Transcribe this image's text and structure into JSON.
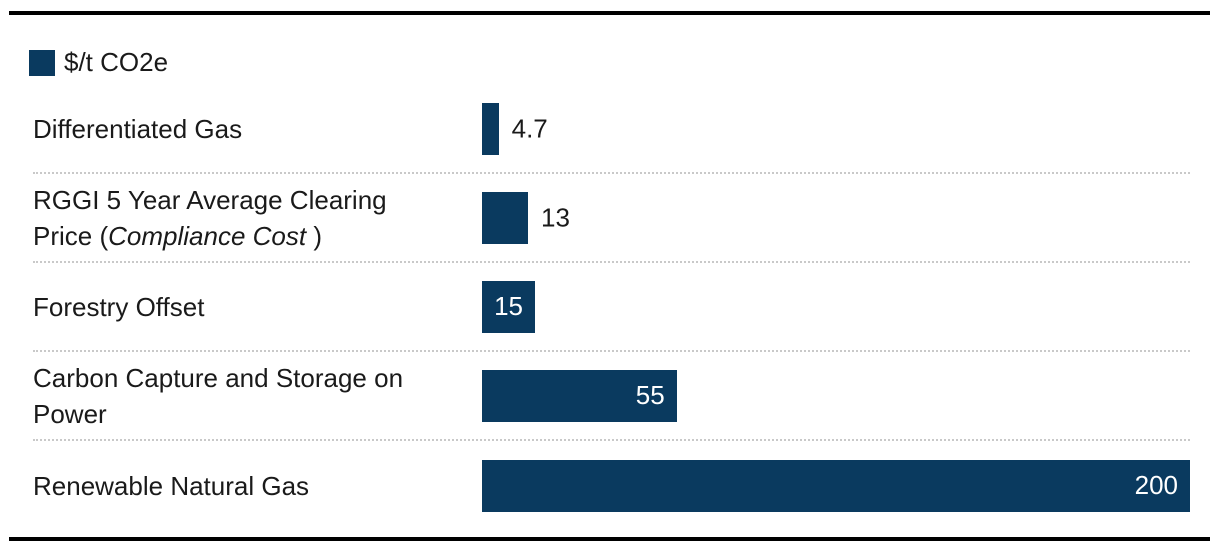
{
  "chart_data": {
    "type": "bar",
    "orientation": "horizontal",
    "title": "",
    "legend": {
      "label": "$/t CO2e"
    },
    "unit": "$/t CO2e",
    "xlim": [
      0,
      200
    ],
    "xmax": 200,
    "gridlines": false,
    "value_labels": true,
    "categories": [
      "Differentiated Gas",
      "RGGI 5 Year Average Clearing Price (Compliance Cost )",
      "Forestry Offset",
      "Carbon Capture and Storage on Power",
      "Renewable Natural Gas"
    ],
    "values": [
      4.7,
      13,
      15,
      55,
      200
    ],
    "colors": {
      "bar": "#0a3a5f",
      "text": "#1a1a1a",
      "value_inside": "#ffffff",
      "separator": "#c9c9c9",
      "rule": "#000000"
    },
    "rows": [
      {
        "label_prefix": "Differentiated Gas",
        "label_italic": "",
        "label_suffix": "",
        "value": 4.7,
        "value_display": "4.7",
        "value_position": "outside"
      },
      {
        "label_prefix": "RGGI 5 Year Average Clearing Price (",
        "label_italic": "Compliance Cost ",
        "label_suffix": ")",
        "value": 13,
        "value_display": "13",
        "value_position": "outside"
      },
      {
        "label_prefix": "Forestry Offset",
        "label_italic": "",
        "label_suffix": "",
        "value": 15,
        "value_display": "15",
        "value_position": "inside-center"
      },
      {
        "label_prefix": "Carbon Capture and Storage on Power",
        "label_italic": "",
        "label_suffix": "",
        "value": 55,
        "value_display": "55",
        "value_position": "inside-right"
      },
      {
        "label_prefix": "Renewable Natural Gas",
        "label_italic": "",
        "label_suffix": "",
        "value": 200,
        "value_display": "200",
        "value_position": "inside-right"
      }
    ]
  }
}
